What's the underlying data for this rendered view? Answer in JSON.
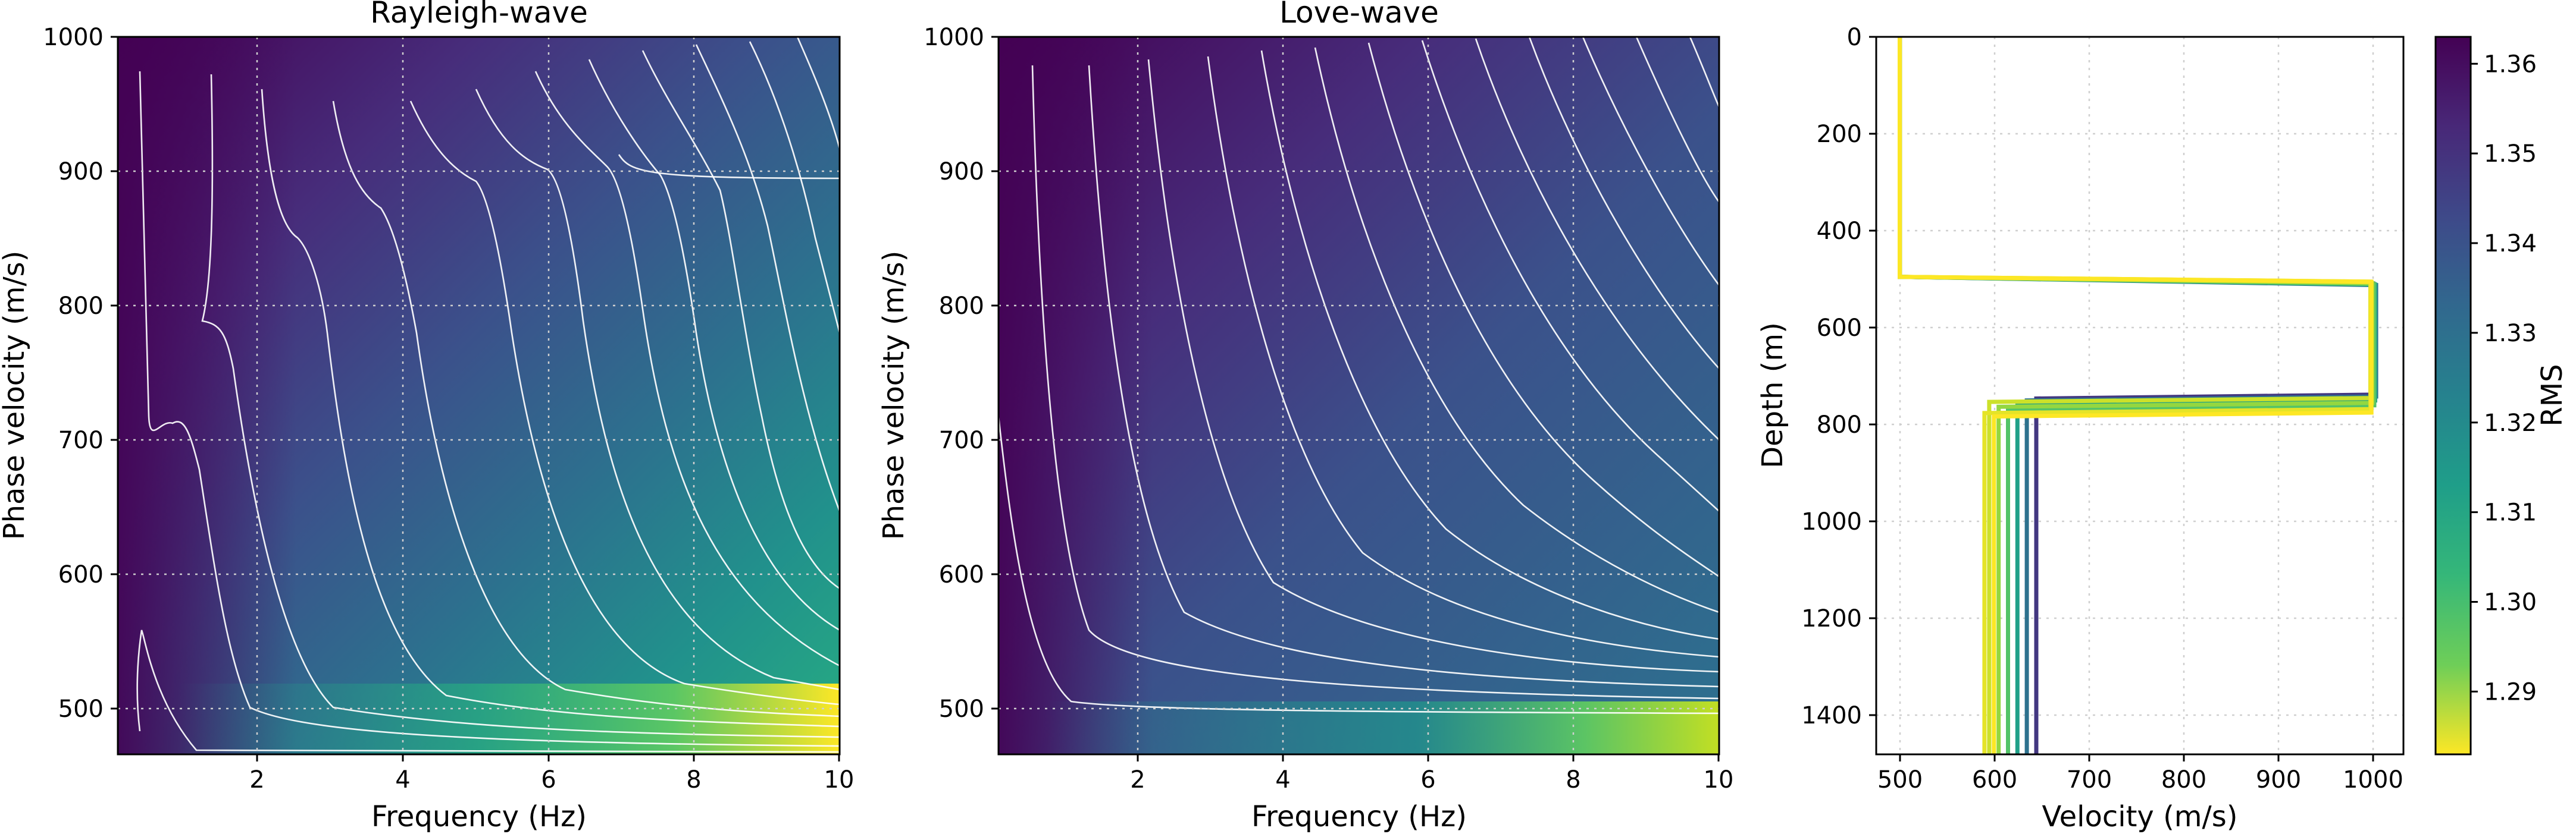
{
  "chart_data": [
    {
      "type": "heatmap",
      "title": "Rayleigh-wave",
      "xlabel": "Frequency (Hz)",
      "ylabel": "Phase velocity (m/s)",
      "xlim": [
        0.05,
        10
      ],
      "ylim": [
        465,
        1000
      ],
      "xticks": [
        2,
        4,
        6,
        8,
        10
      ],
      "yticks": [
        500,
        600,
        700,
        800,
        900,
        1000
      ],
      "grid": true,
      "colormap": "viridis",
      "contour_color": "#ffffff"
    },
    {
      "type": "heatmap",
      "title": "Love-wave",
      "xlabel": "Frequency (Hz)",
      "ylabel": "Phase velocity (m/s)",
      "xlim": [
        0.05,
        10
      ],
      "ylim": [
        465,
        1000
      ],
      "xticks": [
        2,
        4,
        6,
        8,
        10
      ],
      "yticks": [
        500,
        600,
        700,
        800,
        900,
        1000
      ],
      "grid": true,
      "colormap": "viridis",
      "contour_color": "#ffffff"
    },
    {
      "type": "line",
      "xlabel": "Velocity (m/s)",
      "ylabel": "Depth (m)",
      "xlim": [
        475,
        1035
      ],
      "ylim": [
        1480,
        0
      ],
      "xticks": [
        500,
        600,
        700,
        800,
        900,
        1000
      ],
      "yticks": [
        0,
        200,
        400,
        600,
        800,
        1000,
        1200,
        1400
      ],
      "grid": true,
      "models": [
        {
          "vel": [
            500,
            1000,
            595
          ],
          "depth_top2": 505,
          "depth_top3": 745,
          "rms": 1.289
        },
        {
          "vel": [
            500,
            1002,
            605
          ],
          "depth_top2": 508,
          "depth_top3": 755,
          "rms": 1.296
        },
        {
          "vel": [
            500,
            1004,
            615
          ],
          "depth_top2": 510,
          "depth_top3": 760,
          "rms": 1.305
        },
        {
          "vel": [
            500,
            1005,
            625
          ],
          "depth_top2": 511,
          "depth_top3": 750,
          "rms": 1.318
        },
        {
          "vel": [
            500,
            1006,
            635
          ],
          "depth_top2": 512,
          "depth_top3": 742,
          "rms": 1.333
        },
        {
          "vel": [
            500,
            1003,
            645
          ],
          "depth_top2": 509,
          "depth_top3": 738,
          "rms": 1.35
        },
        {
          "vel": [
            500,
            1000,
            590
          ],
          "depth_top2": 506,
          "depth_top3": 768,
          "rms": 1.286
        },
        {
          "vel": [
            500,
            1001,
            600
          ],
          "depth_top2": 505,
          "depth_top3": 775,
          "rms": 1.283
        }
      ],
      "colorbar": {
        "label": "RMS",
        "colormap": "viridis_r",
        "range": [
          1.283,
          1.363
        ],
        "ticks": [
          1.29,
          1.3,
          1.31,
          1.32,
          1.33,
          1.34,
          1.35,
          1.36
        ]
      }
    }
  ]
}
